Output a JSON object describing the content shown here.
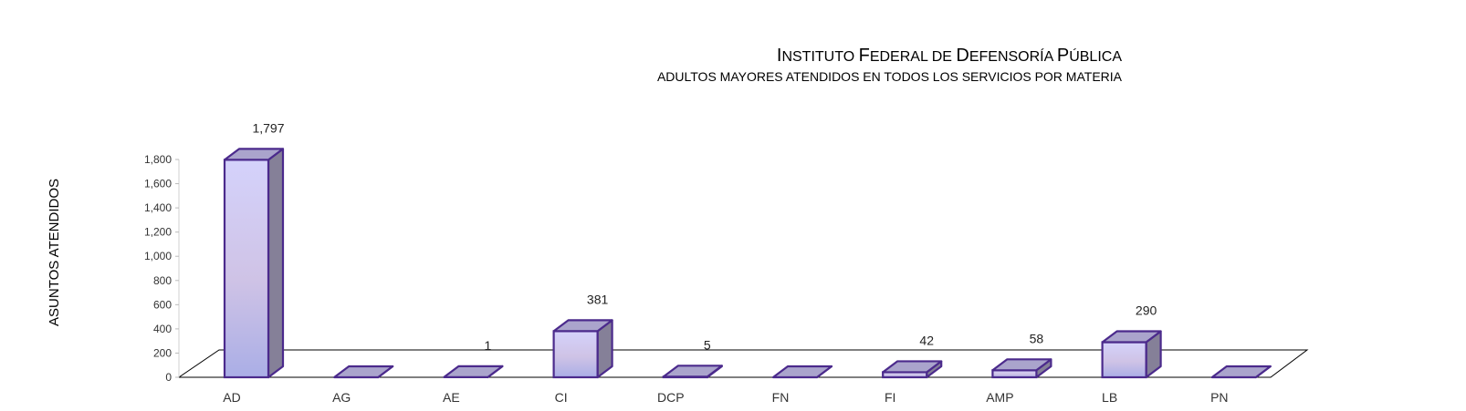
{
  "chart_data": {
    "type": "bar",
    "title_parts": [
      {
        "initial": "I",
        "rest": "NSTITUTO "
      },
      {
        "initial": "F",
        "rest": "EDERAL DE "
      },
      {
        "initial": "D",
        "rest": "EFENSORÍA "
      },
      {
        "initial": "P",
        "rest": "ÚBLICA"
      }
    ],
    "subtitle": "ADULTOS MAYORES ATENDIDOS EN TODOS LOS SERVICIOS POR MATERIA",
    "ylabel": "ASUNTOS ATENDIDOS",
    "categories": [
      "AD",
      "AG",
      "AE",
      "CI",
      "DCP",
      "FN",
      "FI",
      "AMP",
      "LB",
      "PN"
    ],
    "values": [
      1797,
      0,
      1,
      381,
      5,
      0,
      42,
      58,
      290,
      0
    ],
    "data_labels": [
      "1,797",
      "",
      "1",
      "381",
      "5",
      "",
      "42",
      "58",
      "290",
      ""
    ],
    "yticks": [
      "0",
      "200",
      "400",
      "600",
      "800",
      "1,000",
      "1,200",
      "1,400",
      "1,600",
      "1,800"
    ],
    "ylim": [
      0,
      1800
    ],
    "grid": false,
    "legend": "none",
    "colors": {
      "bar_front_top": "#d4d2fb",
      "bar_front_bottom": "#aaaee6",
      "bar_side": "#858098",
      "bar_top": "#aaa4cc",
      "bar_stroke": "#4b2a8c"
    }
  }
}
